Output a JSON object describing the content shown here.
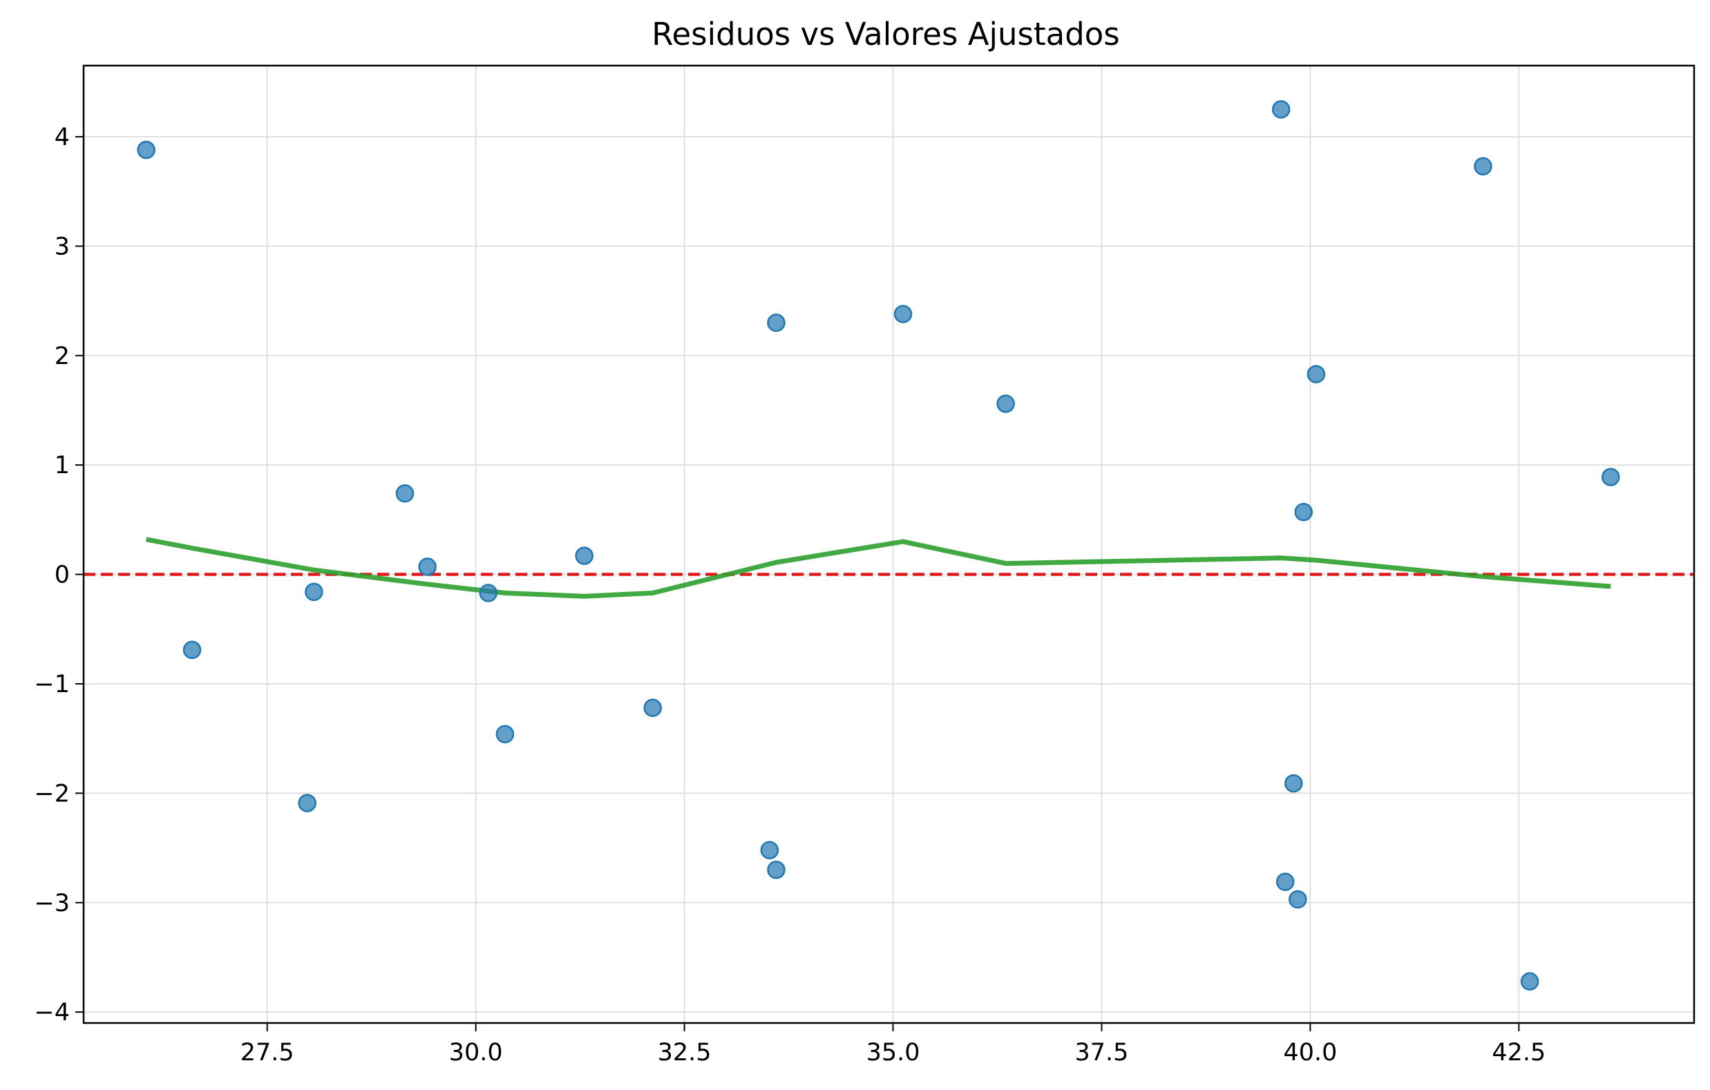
{
  "chart_data": {
    "type": "scatter",
    "title": "Residuos vs Valores Ajustados",
    "xlabel": "",
    "ylabel": "",
    "xlim": [
      25.3,
      44.6
    ],
    "ylim": [
      -4.1,
      4.65
    ],
    "x_ticks": [
      27.5,
      30.0,
      32.5,
      35.0,
      37.5,
      40.0,
      42.5
    ],
    "x_tick_labels": [
      "27.5",
      "30.0",
      "32.5",
      "35.0",
      "37.5",
      "40.0",
      "42.5"
    ],
    "y_ticks": [
      -4,
      -3,
      -2,
      -1,
      0,
      1,
      2,
      3,
      4
    ],
    "y_tick_labels": [
      "−4",
      "−3",
      "−2",
      "−1",
      "0",
      "1",
      "2",
      "3",
      "4"
    ],
    "grid": true,
    "colors": {
      "points": "#1f77b4",
      "smooth": "#2ca02c",
      "reference": "#e31a1c"
    },
    "reference_line_y": 0,
    "points": [
      {
        "x": 26.05,
        "y": 3.88
      },
      {
        "x": 26.6,
        "y": -0.69
      },
      {
        "x": 27.98,
        "y": -2.09
      },
      {
        "x": 28.06,
        "y": -0.16
      },
      {
        "x": 29.15,
        "y": 0.74
      },
      {
        "x": 29.42,
        "y": 0.07
      },
      {
        "x": 30.15,
        "y": -0.17
      },
      {
        "x": 30.35,
        "y": -1.46
      },
      {
        "x": 31.3,
        "y": 0.17
      },
      {
        "x": 32.12,
        "y": -1.22
      },
      {
        "x": 33.52,
        "y": -2.52
      },
      {
        "x": 33.6,
        "y": 2.3
      },
      {
        "x": 33.6,
        "y": -2.7
      },
      {
        "x": 35.12,
        "y": 2.38
      },
      {
        "x": 36.35,
        "y": 1.56
      },
      {
        "x": 39.65,
        "y": 4.25
      },
      {
        "x": 39.7,
        "y": -2.81
      },
      {
        "x": 39.8,
        "y": -1.91
      },
      {
        "x": 39.85,
        "y": -2.97
      },
      {
        "x": 39.92,
        "y": 0.57
      },
      {
        "x": 40.07,
        "y": 1.83
      },
      {
        "x": 42.07,
        "y": 3.73
      },
      {
        "x": 42.63,
        "y": -3.72
      },
      {
        "x": 43.6,
        "y": 0.89
      }
    ],
    "smooth_line": [
      {
        "x": 26.05,
        "y": 0.32
      },
      {
        "x": 26.6,
        "y": 0.24
      },
      {
        "x": 28.06,
        "y": 0.04
      },
      {
        "x": 29.42,
        "y": -0.09
      },
      {
        "x": 30.35,
        "y": -0.17
      },
      {
        "x": 31.3,
        "y": -0.2
      },
      {
        "x": 32.12,
        "y": -0.17
      },
      {
        "x": 33.6,
        "y": 0.11
      },
      {
        "x": 35.12,
        "y": 0.3
      },
      {
        "x": 36.35,
        "y": 0.1
      },
      {
        "x": 39.65,
        "y": 0.15
      },
      {
        "x": 40.07,
        "y": 0.13
      },
      {
        "x": 42.07,
        "y": -0.02
      },
      {
        "x": 43.6,
        "y": -0.11
      }
    ]
  }
}
